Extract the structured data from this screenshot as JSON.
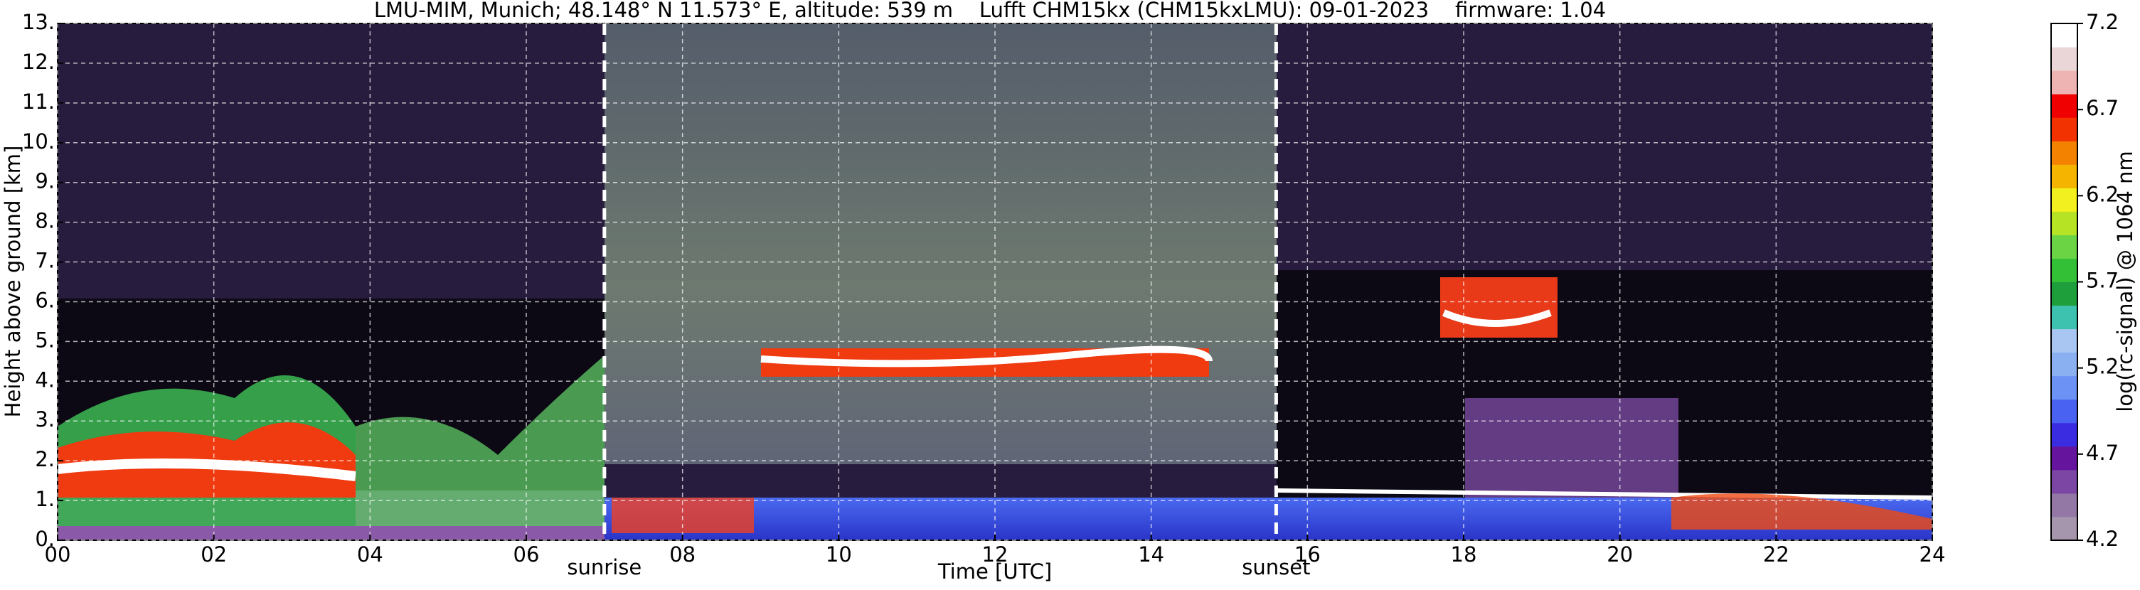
{
  "chart_data": {
    "type": "heatmap",
    "title": "LMU-MIM, Munich; 48.148° N 11.573° E, altitude: 539 m    Lufft CHM15kx (CHM15kxLMU): 09-01-2023    firmware: 1.04",
    "xlabel": "Time [UTC]",
    "ylabel": "Height above ground [km]",
    "xlim": [
      0,
      24
    ],
    "xticks": [
      {
        "value": 0,
        "label": "00"
      },
      {
        "value": 2,
        "label": "02"
      },
      {
        "value": 4,
        "label": "04"
      },
      {
        "value": 6,
        "label": "06"
      },
      {
        "value": 8,
        "label": "08"
      },
      10,
      12,
      14,
      16,
      18,
      20,
      22,
      24
    ],
    "ylim": [
      0,
      13
    ],
    "yticks": [
      {
        "value": 0,
        "label": "0."
      },
      {
        "value": 1,
        "label": "1."
      },
      {
        "value": 2,
        "label": "2."
      },
      {
        "value": 3,
        "label": "3."
      },
      {
        "value": 4,
        "label": "4."
      },
      {
        "value": 5,
        "label": "5."
      },
      {
        "value": 6,
        "label": "6."
      },
      {
        "value": 7,
        "label": "7."
      },
      {
        "value": 8,
        "label": "8."
      },
      {
        "value": 9,
        "label": "9."
      },
      {
        "value": 10,
        "label": "10."
      },
      {
        "value": 11,
        "label": "11."
      },
      {
        "value": 12,
        "label": "12."
      },
      {
        "value": 13,
        "label": "13."
      }
    ],
    "grid": true,
    "annotations": [
      {
        "text": "sunrise",
        "x": 7.0
      },
      {
        "text": "sunset",
        "x": 15.6
      }
    ],
    "colorbar": {
      "label": "log(rc-signal) @ 1064 nm",
      "clim": [
        4.2,
        7.2
      ],
      "ticks": [
        4.2,
        4.7,
        5.2,
        5.7,
        6.2,
        6.7,
        7.2
      ],
      "colormap": [
        "#a596ad",
        "#9378a6",
        "#7c46a4",
        "#65149e",
        "#3a2ce0",
        "#4a62f2",
        "#6b92f4",
        "#8ab0f2",
        "#a9c6f2",
        "#3cc2ae",
        "#1f9e3c",
        "#34c036",
        "#6ad444",
        "#b6e424",
        "#f2f01e",
        "#f4b400",
        "#f28200",
        "#f23200",
        "#f00000",
        "#eeb4b4",
        "#ead6d6",
        "#ffffff"
      ]
    }
  }
}
